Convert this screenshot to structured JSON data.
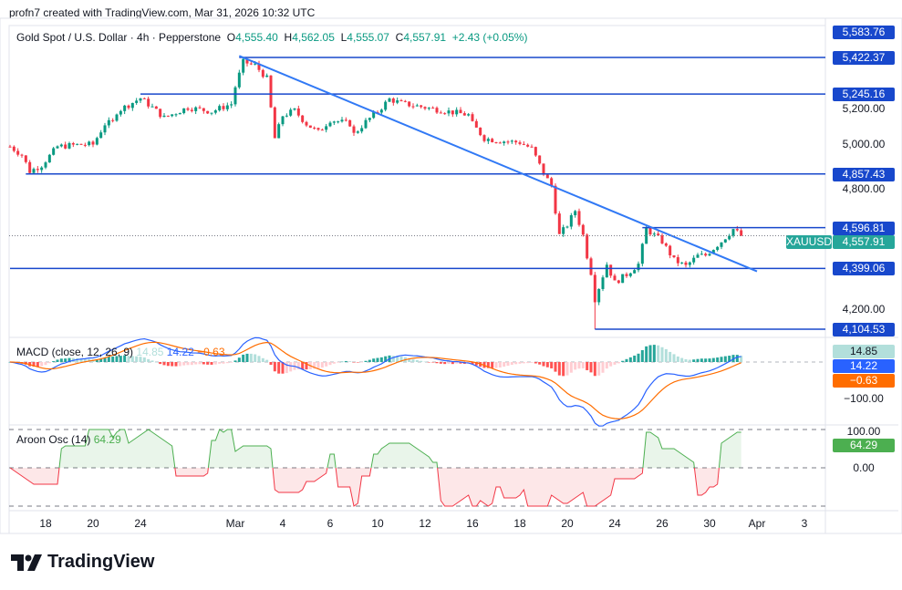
{
  "credit": "profn7 created with TradingView.com, Mar 31, 2026 10:32 UTC",
  "legend": {
    "symbol": "Gold Spot / U.S. Dollar · 4h · Pepperstone",
    "o_label": "O",
    "o": "4,555.40",
    "h_label": "H",
    "h": "4,562.05",
    "l_label": "L",
    "l": "4,555.07",
    "c_label": "C",
    "c": "4,557.91",
    "change": "+2.43 (+0.05%)"
  },
  "macd_legend": {
    "name": "MACD (close, 12, 26, 9)",
    "hist": "14.85",
    "macd": "14.22",
    "signal": "−0.63"
  },
  "aroon_legend": {
    "name": "Aroon Osc (14)",
    "value": "64.29"
  },
  "logo": "TradingView",
  "colors": {
    "up": "#089981",
    "down": "#f23645",
    "level": "#1848cc",
    "trend": "#3179f5",
    "macd": "#2962ff",
    "signal": "#ff6d00",
    "aroon": "#4caf50"
  },
  "chart_data": {
    "type": "candlestick",
    "symbol": "XAUUSD",
    "timeframe": "4h",
    "last_price": 4557.91,
    "last_price_label": "4,557.91",
    "levels": [
      {
        "price": 5583.76,
        "label": "5,583.76",
        "from": null
      },
      {
        "price": 5422.37,
        "label": "5,422.37",
        "from": "2026-03-02T04:00"
      },
      {
        "price": 5245.16,
        "label": "5,245.16",
        "from": "2026-02-24T00:00"
      },
      {
        "price": 4857.43,
        "label": "4,857.43",
        "from": "2026-02-17T04:00"
      },
      {
        "price": 4596.81,
        "label": "4,596.81",
        "from": "2026-03-25T04:00"
      },
      {
        "price": 4399.06,
        "label": "4,399.06",
        "from": "2026-02-16T12:00"
      },
      {
        "price": 4104.53,
        "label": "4,104.53",
        "from": "2026-03-23T04:00"
      }
    ],
    "trendline": [
      [
        "2026-03-02T04:00",
        5430
      ],
      [
        "2026-04-01T00:00",
        4385
      ]
    ],
    "price_ticks": [
      {
        "v": 5200,
        "label": "5,200.00"
      },
      {
        "v": 5000,
        "label": "5,000.00"
      },
      {
        "v": 4800,
        "label": "4,800.00"
      },
      {
        "v": 4200,
        "label": "4,200.00"
      }
    ],
    "macd_ticks": [
      {
        "v": -100,
        "label": "−100.00"
      }
    ],
    "aroon_ticks": [
      {
        "v": 100,
        "label": "100.00"
      },
      {
        "v": 0,
        "label": "0.00"
      }
    ],
    "x_ticks": [
      {
        "d": "2026-02-18",
        "label": "18"
      },
      {
        "d": "2026-02-20",
        "label": "20"
      },
      {
        "d": "2026-02-24",
        "label": "24"
      },
      {
        "d": "2026-03-02",
        "label": "Mar"
      },
      {
        "d": "2026-03-04",
        "label": "4"
      },
      {
        "d": "2026-03-06",
        "label": "6"
      },
      {
        "d": "2026-03-10",
        "label": "10"
      },
      {
        "d": "2026-03-12",
        "label": "12"
      },
      {
        "d": "2026-03-16",
        "label": "16"
      },
      {
        "d": "2026-03-18",
        "label": "18"
      },
      {
        "d": "2026-03-20",
        "label": "20"
      },
      {
        "d": "2026-03-24",
        "label": "24"
      },
      {
        "d": "2026-03-26",
        "label": "26"
      },
      {
        "d": "2026-03-30",
        "label": "30"
      },
      {
        "d": "2026-04-01",
        "label": "Apr"
      },
      {
        "d": "2026-04-03",
        "label": "3"
      }
    ],
    "price_path": [
      [
        "2026-02-16T12:00",
        4990
      ],
      [
        "2026-02-17T00:00",
        4950
      ],
      [
        "2026-02-17T08:00",
        4870
      ],
      [
        "2026-02-17T20:00",
        4900
      ],
      [
        "2026-02-18T12:00",
        4990
      ],
      [
        "2026-02-19T12:00",
        5000
      ],
      [
        "2026-02-20T00:00",
        5000
      ],
      [
        "2026-02-20T12:00",
        5100
      ],
      [
        "2026-02-23T00:00",
        5160
      ],
      [
        "2026-02-24T00:00",
        5225
      ],
      [
        "2026-02-24T12:00",
        5180
      ],
      [
        "2026-02-25T00:00",
        5130
      ],
      [
        "2026-02-26T00:00",
        5180
      ],
      [
        "2026-02-27T00:00",
        5160
      ],
      [
        "2026-02-27T16:00",
        5190
      ],
      [
        "2026-03-02T00:00",
        5280
      ],
      [
        "2026-03-02T08:00",
        5400
      ],
      [
        "2026-03-02T20:00",
        5385
      ],
      [
        "2026-03-03T08:00",
        5320
      ],
      [
        "2026-03-03T16:00",
        5030
      ],
      [
        "2026-03-04T00:00",
        5140
      ],
      [
        "2026-03-04T12:00",
        5165
      ],
      [
        "2026-03-05T00:00",
        5100
      ],
      [
        "2026-03-05T12:00",
        5060
      ],
      [
        "2026-03-06T00:00",
        5120
      ],
      [
        "2026-03-09T00:00",
        5050
      ],
      [
        "2026-03-09T12:00",
        5110
      ],
      [
        "2026-03-10T00:00",
        5160
      ],
      [
        "2026-03-10T12:00",
        5220
      ],
      [
        "2026-03-11T00:00",
        5200
      ],
      [
        "2026-03-12T00:00",
        5180
      ],
      [
        "2026-03-13T00:00",
        5160
      ],
      [
        "2026-03-16T00:00",
        5100
      ],
      [
        "2026-03-16T12:00",
        5030
      ],
      [
        "2026-03-17T00:00",
        5020
      ],
      [
        "2026-03-18T00:00",
        5010
      ],
      [
        "2026-03-18T12:00",
        4980
      ],
      [
        "2026-03-19T00:00",
        4860
      ],
      [
        "2026-03-19T08:00",
        4800
      ],
      [
        "2026-03-19T16:00",
        4560
      ],
      [
        "2026-03-20T00:00",
        4610
      ],
      [
        "2026-03-20T08:00",
        4680
      ],
      [
        "2026-03-20T16:00",
        4560
      ],
      [
        "2026-03-20T20:00",
        4460
      ],
      [
        "2026-03-23T00:00",
        4380
      ],
      [
        "2026-03-23T04:00",
        4250
      ],
      [
        "2026-03-23T16:00",
        4420
      ],
      [
        "2026-03-24T00:00",
        4330
      ],
      [
        "2026-03-24T12:00",
        4370
      ],
      [
        "2026-03-25T00:00",
        4420
      ],
      [
        "2026-03-25T08:00",
        4590
      ],
      [
        "2026-03-25T16:00",
        4560
      ],
      [
        "2026-03-26T00:00",
        4530
      ],
      [
        "2026-03-26T12:00",
        4440
      ],
      [
        "2026-03-27T00:00",
        4410
      ],
      [
        "2026-03-27T12:00",
        4460
      ],
      [
        "2026-03-30T00:00",
        4480
      ],
      [
        "2026-03-30T12:00",
        4530
      ],
      [
        "2026-03-31T00:00",
        4590
      ],
      [
        "2026-03-31T08:00",
        4557.91
      ]
    ],
    "price_range": [
      4104.53,
      5583.76
    ]
  }
}
